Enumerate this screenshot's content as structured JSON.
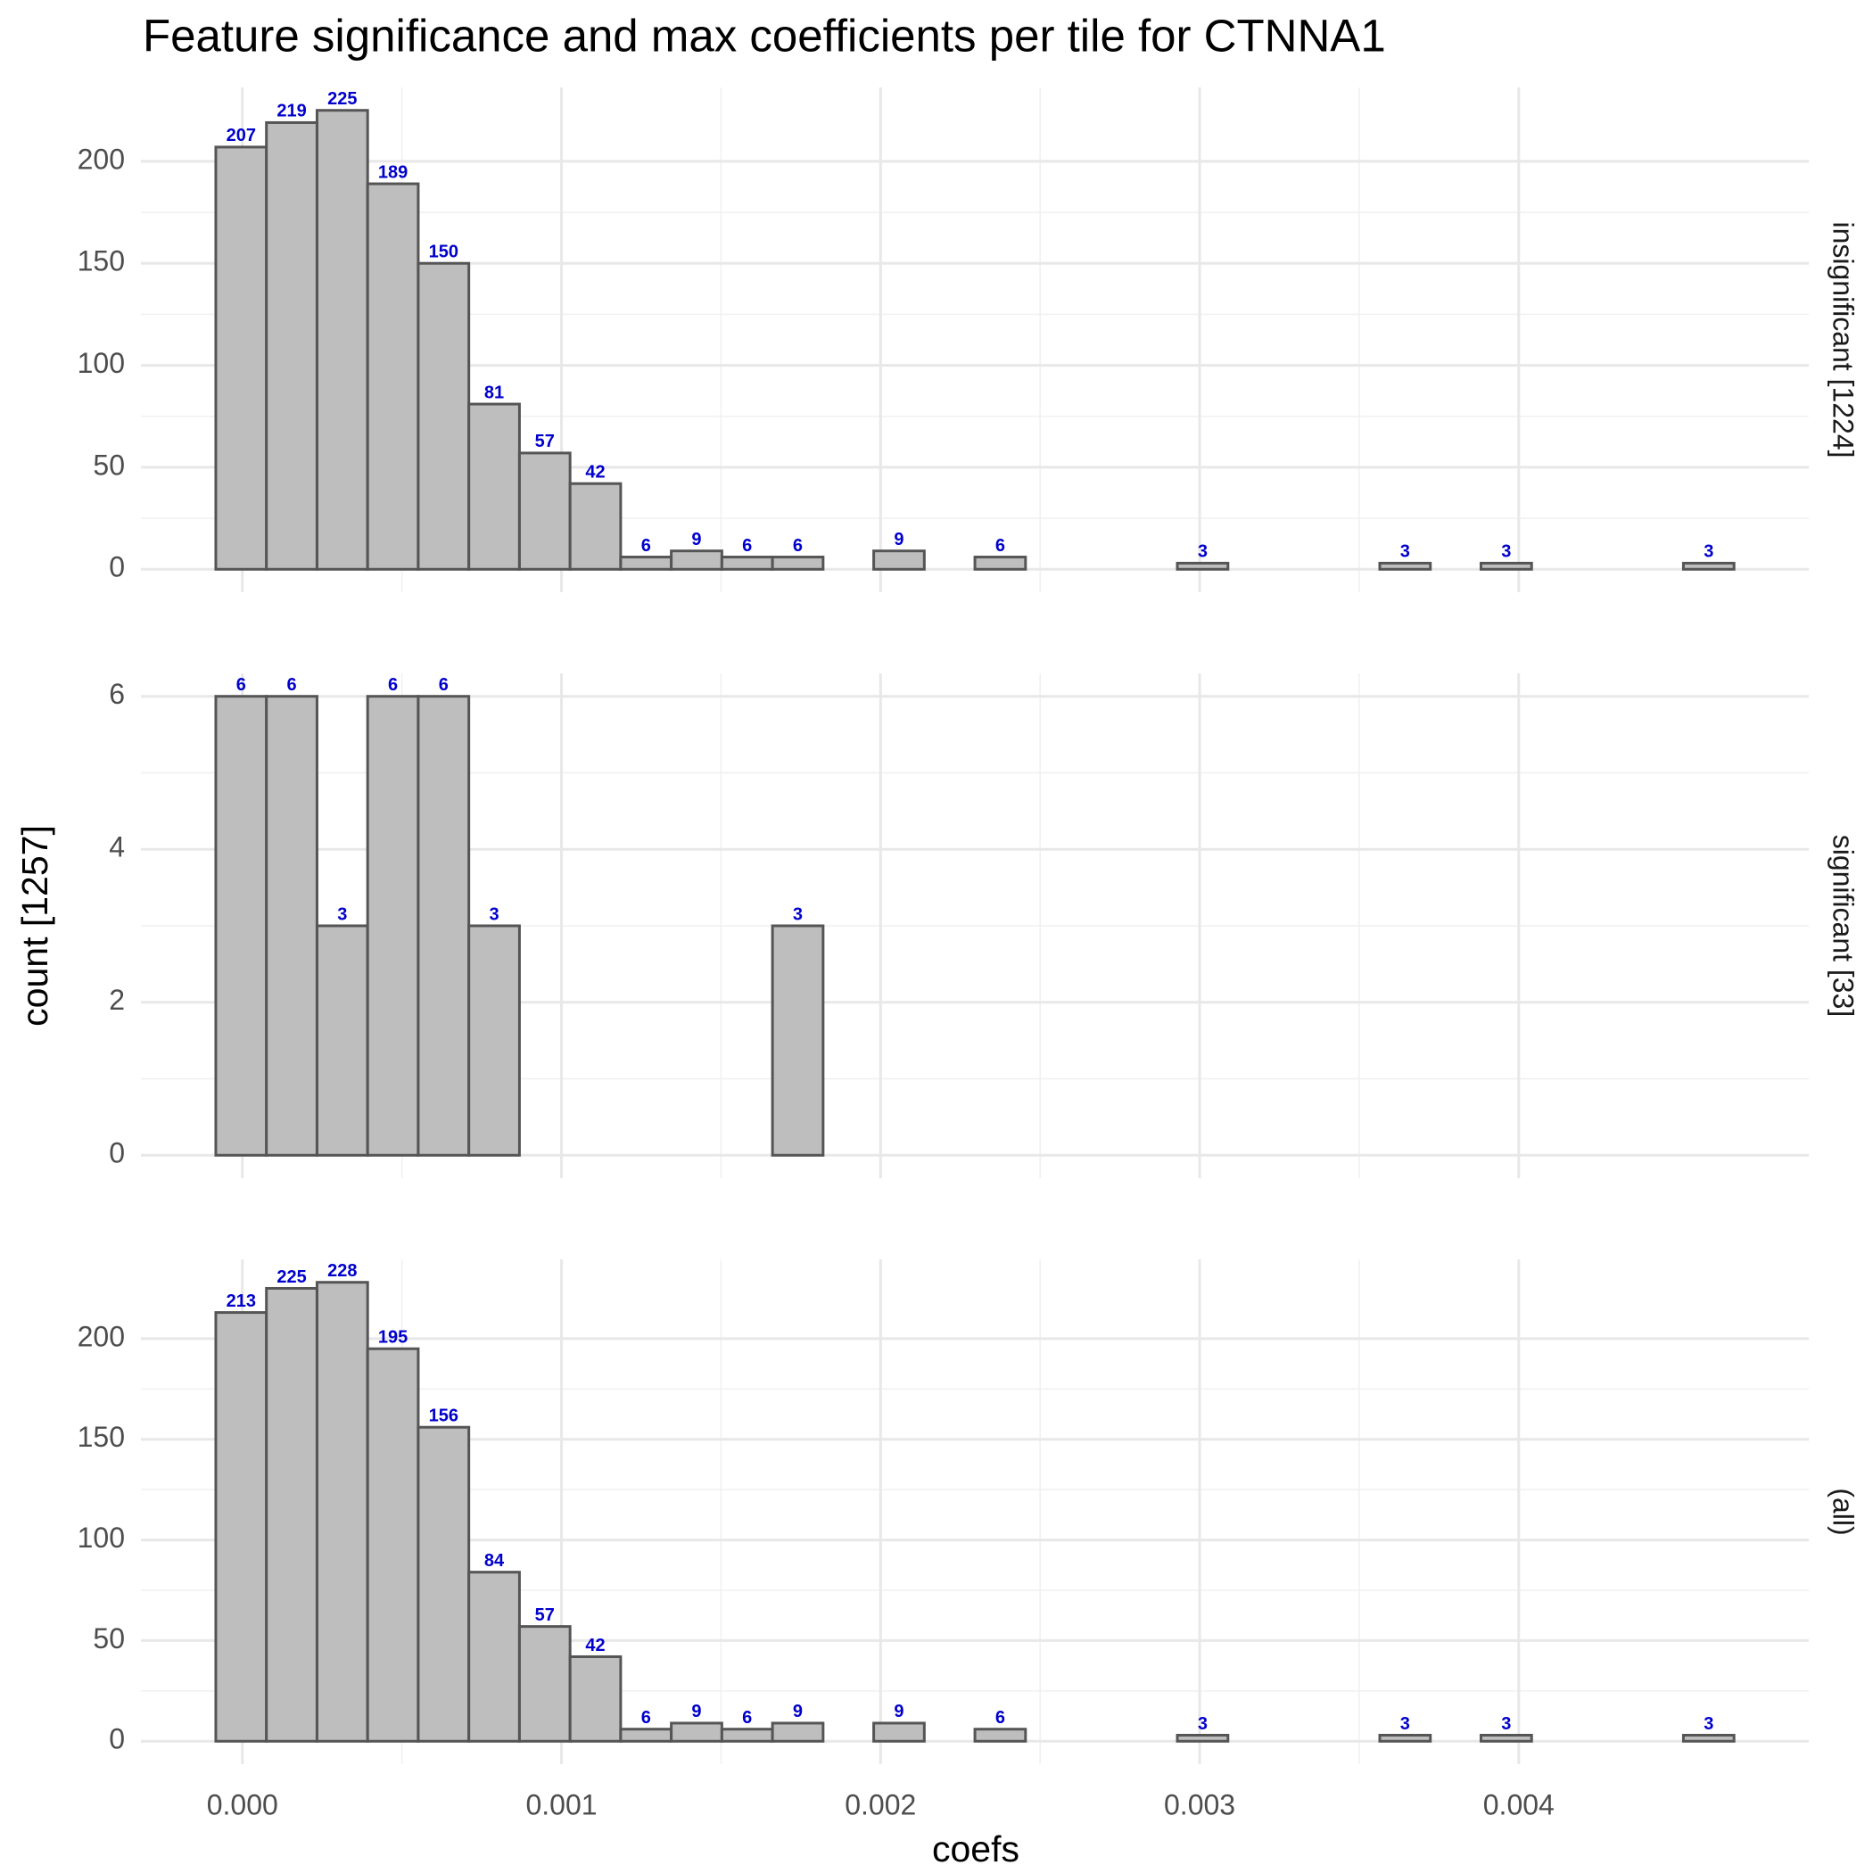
{
  "chart_data": {
    "type": "histogram",
    "title": "Feature significance and max coefficients per tile for CTNNA1",
    "x_label": "coefs",
    "y_label": "count [1257]",
    "fill": "#bebebe",
    "edge_color": "#555555",
    "label_color": "#0000cc",
    "grid": true,
    "bins": [
      -8.33e-05,
      7.53e-05,
      0.0002339,
      0.0003925,
      0.0005511,
      0.0007097,
      0.0008683,
      0.0010269,
      0.0011855,
      0.0013441,
      0.0015027,
      0.0016613,
      0.0018199,
      0.0019785,
      0.0021371,
      0.0022957,
      0.0024543,
      0.0026129,
      0.0027715,
      0.0029301,
      0.0030887,
      0.0032473,
      0.0034059,
      0.0035645,
      0.0037231,
      0.0038817,
      0.0040403,
      0.0041989,
      0.0043575,
      0.0045161,
      0.0046747
    ],
    "xlim": [
      -0.000318,
      0.004909
    ],
    "xticks": [
      {
        "value": 0,
        "label": "0.000"
      },
      {
        "value": 0.001,
        "label": "0.001"
      },
      {
        "value": 0.002,
        "label": "0.002"
      },
      {
        "value": 0.003,
        "label": "0.003"
      },
      {
        "value": 0.004,
        "label": "0.004"
      }
    ],
    "facets": [
      {
        "label": "insignificant [1224]",
        "ylim": [
          -11.25,
          236.25
        ],
        "yticks": [
          0,
          50,
          100,
          150,
          200
        ],
        "values": [
          207,
          219,
          225,
          189,
          150,
          81,
          57,
          42,
          6,
          9,
          6,
          6,
          0,
          9,
          0,
          6,
          0,
          0,
          0,
          3,
          0,
          0,
          0,
          3,
          0,
          3,
          0,
          0,
          0,
          3
        ]
      },
      {
        "label": "significant [33]",
        "ylim": [
          -0.3,
          6.3
        ],
        "yticks": [
          0,
          2,
          4,
          6
        ],
        "values": [
          6,
          6,
          3,
          6,
          6,
          3,
          0,
          0,
          0,
          0,
          0,
          3,
          0,
          0,
          0,
          0,
          0,
          0,
          0,
          0,
          0,
          0,
          0,
          0,
          0,
          0,
          0,
          0,
          0,
          0
        ]
      },
      {
        "label": "(all)",
        "ylim": [
          -11.4,
          239.4
        ],
        "yticks": [
          0,
          50,
          100,
          150,
          200
        ],
        "values": [
          213,
          225,
          228,
          195,
          156,
          84,
          57,
          42,
          6,
          9,
          6,
          9,
          0,
          9,
          0,
          6,
          0,
          0,
          0,
          3,
          0,
          0,
          0,
          3,
          0,
          3,
          0,
          0,
          0,
          3
        ]
      }
    ]
  }
}
